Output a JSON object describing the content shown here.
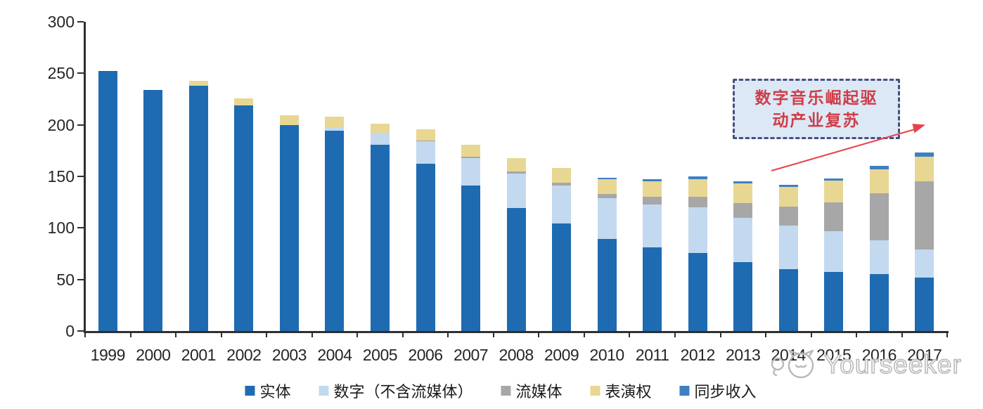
{
  "chart_data": {
    "type": "bar",
    "stacked": true,
    "title": "",
    "xlabel": "",
    "ylabel": "",
    "ylim": [
      0,
      300
    ],
    "yticks": [
      0,
      50,
      100,
      150,
      200,
      250,
      300
    ],
    "grid": false,
    "legend_position": "bottom",
    "axis_color": "#2f2f2f",
    "label_color": "#262626",
    "categories": [
      "1999",
      "2000",
      "2001",
      "2002",
      "2003",
      "2004",
      "2005",
      "2006",
      "2007",
      "2008",
      "2009",
      "2010",
      "2011",
      "2012",
      "2013",
      "2014",
      "2015",
      "2016",
      "2017"
    ],
    "series": [
      {
        "key": "physical",
        "name": "实体",
        "color": "#1E6BB1",
        "values": [
          252,
          234,
          238,
          219,
          200,
          194,
          181,
          162,
          141,
          119,
          104,
          89,
          81,
          76,
          67,
          60,
          57,
          55,
          52
        ]
      },
      {
        "key": "digital-excl-streaming",
        "name": "数字（不含流媒体）",
        "color": "#C3D9EF",
        "values": [
          0,
          0,
          0,
          0,
          0,
          4,
          11,
          22,
          27,
          34,
          37,
          40,
          42,
          44,
          43,
          42,
          40,
          33,
          27
        ]
      },
      {
        "key": "streaming",
        "name": "流媒体",
        "color": "#A7A7A7",
        "values": [
          0,
          0,
          0,
          0,
          0,
          0,
          0,
          1,
          1,
          2,
          3,
          4,
          7,
          10,
          14,
          19,
          28,
          46,
          66
        ]
      },
      {
        "key": "performance-rights",
        "name": "表演权",
        "color": "#E8D792",
        "values": [
          0,
          0,
          5,
          7,
          9,
          10,
          9,
          11,
          12,
          13,
          14,
          14,
          15,
          17,
          19,
          19,
          21,
          23,
          24
        ]
      },
      {
        "key": "synchronization",
        "name": "同步收入",
        "color": "#3E80C1",
        "values": [
          0,
          0,
          0,
          0,
          0,
          0,
          0,
          0,
          0,
          0,
          0,
          2,
          2,
          3,
          2,
          2,
          2,
          3,
          4
        ]
      }
    ]
  },
  "annotation": {
    "lines": [
      "数字音乐崛起驱",
      "动产业复苏"
    ],
    "text_color": "#CE3D47",
    "fill_color": "#DCE8F6",
    "border_color": "#44517B",
    "arrow_color": "#E8414B"
  },
  "watermark": {
    "text": "Yourseeker",
    "logo": "cat-logo",
    "color": "#B9B9B9"
  }
}
